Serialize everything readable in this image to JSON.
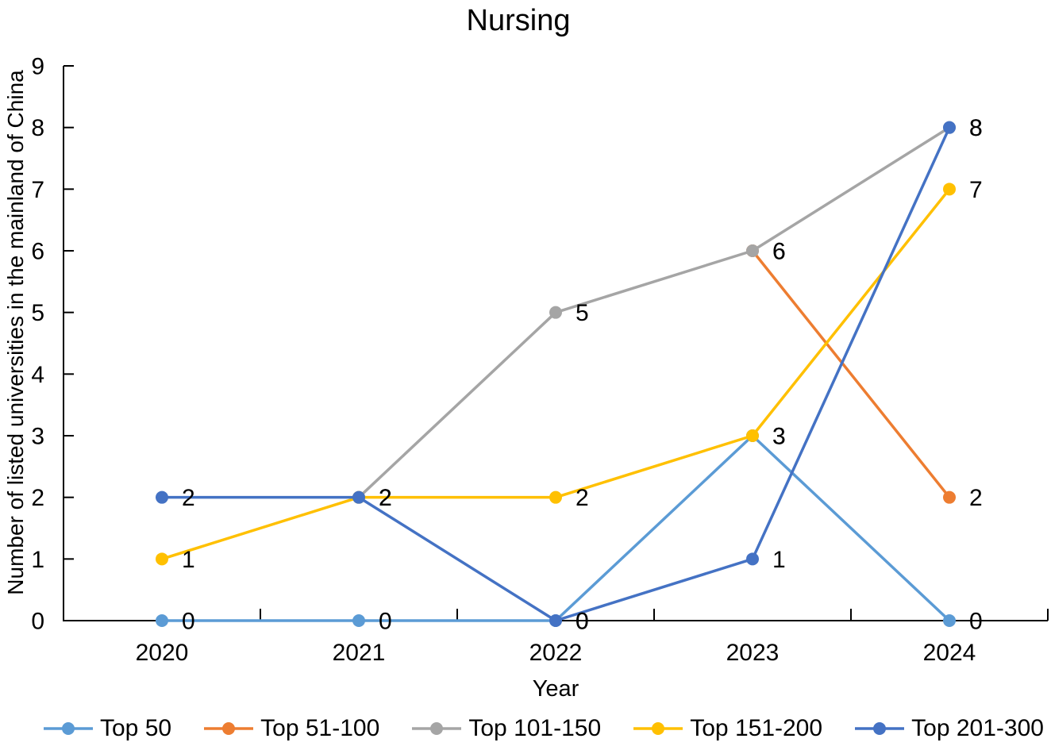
{
  "chart_data": {
    "type": "line",
    "title": "Nursing",
    "xlabel": "Year",
    "ylabel": "Number of listed universities in the mainland of China",
    "categories": [
      "2020",
      "2021",
      "2022",
      "2023",
      "2024"
    ],
    "y_ticks": [
      0,
      1,
      2,
      3,
      4,
      5,
      6,
      7,
      8,
      9
    ],
    "ylim": [
      0,
      9
    ],
    "grid": false,
    "data_labels": true,
    "legend_position": "bottom",
    "axis_color": "#000000",
    "label_color": "#000000",
    "series": [
      {
        "name": "Top 50",
        "color": "#5B9BD5",
        "values": [
          0,
          0,
          0,
          3,
          0
        ]
      },
      {
        "name": "Top 51-100",
        "color": "#ED7D31",
        "values": [
          null,
          null,
          null,
          6,
          2
        ]
      },
      {
        "name": "Top 101-150",
        "color": "#A5A5A5",
        "values": [
          null,
          2,
          5,
          6,
          8
        ]
      },
      {
        "name": "Top 151-200",
        "color": "#FFC000",
        "values": [
          1,
          2,
          2,
          3,
          7
        ]
      },
      {
        "name": "Top 201-300",
        "color": "#4472C4",
        "values": [
          2,
          2,
          0,
          1,
          8
        ]
      }
    ]
  }
}
